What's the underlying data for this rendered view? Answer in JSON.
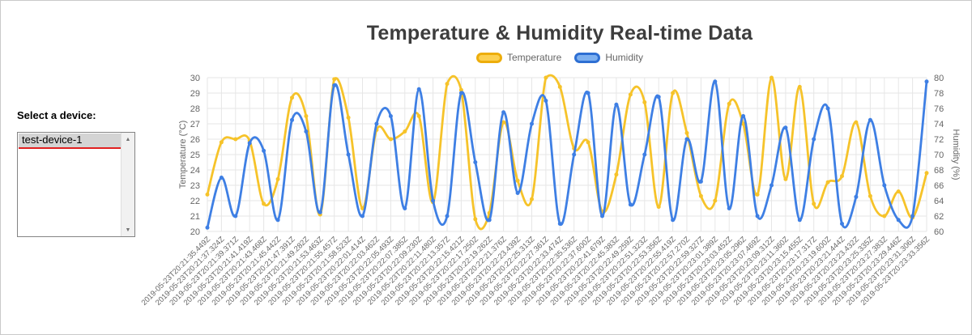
{
  "title": "Temperature & Humidity Real-time Data",
  "device_panel": {
    "label": "Select a device:",
    "options": [
      {
        "label": "test-device-1",
        "selected": true
      }
    ],
    "selected_option_bg": "#d4d4d4",
    "selection_highlight": "#e02020"
  },
  "chart_data": {
    "type": "line",
    "title": "Temperature & Humidity Real-time Data",
    "legend_position": "top",
    "grid": true,
    "y_left": {
      "label": "Temperature (°C)",
      "min": 20,
      "max": 30,
      "step": 1
    },
    "y_right": {
      "label": "Humidity (%)",
      "min": 60,
      "max": 80,
      "step": 2
    },
    "x": [
      "2019-05-23T20:21:35.449Z",
      "2019-05-23T20:21:37.324Z",
      "2019-05-23T20:21:39.371Z",
      "2019-05-23T20:21:41.419Z",
      "2019-05-23T20:21:43.468Z",
      "2019-05-23T20:21:45.442Z",
      "2019-05-23T20:21:47.391Z",
      "2019-05-23T20:21:49.282Z",
      "2019-05-23T20:21:53.463Z",
      "2019-05-23T20:21:55.457Z",
      "2019-05-23T20:21:58.523Z",
      "2019-05-23T20:22:01.414Z",
      "2019-05-23T20:22:03.462Z",
      "2019-05-23T20:22:05.493Z",
      "2019-05-23T20:22:07.385Z",
      "2019-05-23T20:22:09.230Z",
      "2019-05-23T20:22:11.480Z",
      "2019-05-23T20:22:13.357Z",
      "2019-05-23T20:22:15.421Z",
      "2019-05-23T20:22:17.250Z",
      "2019-05-23T20:22:19.262Z",
      "2019-05-23T20:22:21.376Z",
      "2019-05-23T20:22:23.439Z",
      "2019-05-23T20:22:25.313Z",
      "2019-05-23T20:22:27.361Z",
      "2019-05-23T20:22:33.474Z",
      "2019-05-23T20:22:35.536Z",
      "2019-05-23T20:22:37.600Z",
      "2019-05-23T20:22:41.679Z",
      "2019-05-23T20:22:45.383Z",
      "2019-05-23T20:22:49.259Z",
      "2019-05-23T20:22:51.323Z",
      "2019-05-23T20:22:53.356Z",
      "2019-05-23T20:22:55.419Z",
      "2019-05-23T20:22:57.270Z",
      "2019-05-23T20:22:59.327Z",
      "2019-05-23T20:23:01.389Z",
      "2019-05-23T20:23:03.452Z",
      "2019-05-23T20:23:05.296Z",
      "2019-05-23T20:23:07.469Z",
      "2019-05-23T20:23:09.312Z",
      "2019-05-23T20:23:11.360Z",
      "2019-05-23T20:23:15.455Z",
      "2019-05-23T20:23:17.317Z",
      "2019-05-23T20:23:19.600Z",
      "2019-05-23T20:23:21.444Z",
      "2019-05-23T20:23:23.432Z",
      "2019-05-23T20:23:25.335Z",
      "2019-05-23T20:23:27.383Z",
      "2019-05-23T20:23:29.446Z",
      "2019-05-23T20:23:31.306Z",
      "2019-05-23T20:23:33.356Z"
    ],
    "series": [
      {
        "name": "Temperature",
        "axis": "left",
        "color": "#F6C32A",
        "legend_fill": "#FCD050",
        "legend_border": "#EDAD0B",
        "values": [
          22.4,
          25.8,
          26.0,
          25.9,
          21.8,
          23.4,
          28.7,
          27.5,
          21.1,
          29.9,
          27.4,
          21.5,
          26.6,
          26.0,
          26.5,
          27.5,
          21.9,
          29.6,
          29.2,
          20.8,
          21.2,
          27.1,
          23.3,
          22.1,
          30.0,
          29.4,
          25.4,
          25.8,
          21.3,
          23.7,
          28.9,
          28.4,
          21.6,
          29.0,
          26.4,
          22.3,
          22.0,
          28.3,
          27.0,
          22.4,
          30.0,
          23.4,
          29.4,
          21.8,
          23.2,
          23.6,
          27.1,
          22.3,
          21.0,
          22.6,
          20.9,
          23.8
        ]
      },
      {
        "name": "Humidity",
        "axis": "right",
        "color": "#3E7FE4",
        "legend_fill": "#7DB0F0",
        "legend_border": "#2E6FD3",
        "values": [
          60.5,
          67.0,
          62.0,
          71.5,
          70.5,
          61.5,
          74.5,
          73.0,
          62.5,
          79.0,
          70.0,
          62.0,
          74.0,
          75.0,
          63.0,
          78.5,
          64.0,
          62.0,
          78.0,
          69.0,
          61.5,
          75.5,
          65.0,
          74.0,
          77.0,
          61.0,
          70.0,
          78.0,
          62.0,
          76.5,
          63.5,
          70.0,
          77.5,
          61.5,
          72.0,
          66.5,
          79.5,
          63.0,
          75.0,
          62.0,
          66.0,
          73.5,
          61.5,
          72.0,
          76.0,
          61.0,
          64.5,
          74.5,
          66.0,
          61.5,
          62.0,
          79.5
        ]
      }
    ]
  },
  "scrollbar": {
    "up_glyph": "▲",
    "down_glyph": "▼"
  }
}
